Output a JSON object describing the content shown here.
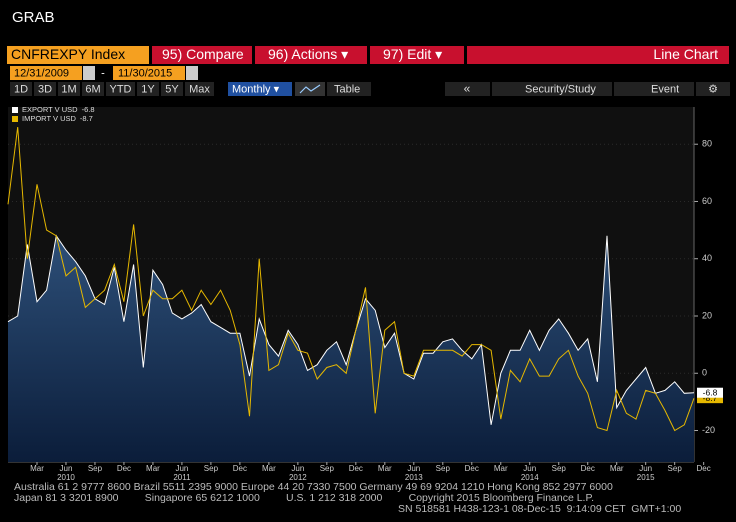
{
  "window": {
    "title": "GRAB"
  },
  "toolbar": {
    "security": "CNFREXPY Index",
    "buttons": [
      "95) Compare",
      "96) Actions ▾",
      "97) Edit ▾"
    ],
    "view": "Line Chart",
    "start_date": "12/31/2009",
    "end_date": "11/30/2015",
    "periods": [
      "1D",
      "3D",
      "1M",
      "6M",
      "YTD",
      "1Y",
      "5Y",
      "Max"
    ],
    "frequency": "Monthly ▾",
    "table": "Table",
    "security_study": "Security/Study",
    "event": "Event"
  },
  "chart_data": {
    "type": "line",
    "x": [
      "2009-12",
      "2010-01",
      "2010-02",
      "2010-03",
      "2010-04",
      "2010-05",
      "2010-06",
      "2010-07",
      "2010-08",
      "2010-09",
      "2010-10",
      "2010-11",
      "2010-12",
      "2011-01",
      "2011-02",
      "2011-03",
      "2011-04",
      "2011-05",
      "2011-06",
      "2011-07",
      "2011-08",
      "2011-09",
      "2011-10",
      "2011-11",
      "2011-12",
      "2012-01",
      "2012-02",
      "2012-03",
      "2012-04",
      "2012-05",
      "2012-06",
      "2012-07",
      "2012-08",
      "2012-09",
      "2012-10",
      "2012-11",
      "2012-12",
      "2013-01",
      "2013-02",
      "2013-03",
      "2013-04",
      "2013-05",
      "2013-06",
      "2013-07",
      "2013-08",
      "2013-09",
      "2013-10",
      "2013-11",
      "2013-12",
      "2014-01",
      "2014-02",
      "2014-03",
      "2014-04",
      "2014-05",
      "2014-06",
      "2014-07",
      "2014-08",
      "2014-09",
      "2014-10",
      "2014-11",
      "2014-12",
      "2015-01",
      "2015-02",
      "2015-03",
      "2015-04",
      "2015-05",
      "2015-06",
      "2015-07",
      "2015-08",
      "2015-09",
      "2015-10",
      "2015-11"
    ],
    "series": [
      {
        "name": "EXPORT V USD",
        "color": "#ffffff",
        "area": true,
        "values": [
          18,
          20,
          45,
          25,
          29,
          48,
          43,
          39,
          34,
          26,
          24,
          37,
          18,
          38,
          2,
          36,
          31,
          21,
          19,
          21,
          24,
          18,
          16,
          14,
          14,
          -1,
          19,
          10,
          6,
          15,
          10,
          1,
          3,
          8,
          11,
          3,
          15,
          26,
          22,
          9,
          14,
          0,
          -2,
          7,
          7,
          11,
          12,
          8,
          5,
          10,
          -18,
          0,
          8,
          8,
          15,
          8,
          15,
          19,
          14,
          8,
          12,
          -3,
          48,
          -12,
          -6,
          -2,
          2,
          -7,
          -6,
          -3,
          -7,
          -6.8
        ]
      },
      {
        "name": "IMPORT V USD",
        "color": "#e6b800",
        "area": false,
        "values": [
          59,
          86,
          40,
          66,
          50,
          48,
          34,
          37,
          23,
          26,
          29,
          38,
          25,
          52,
          20,
          29,
          26,
          26,
          29,
          22,
          29,
          24,
          29,
          22,
          10,
          -15,
          40,
          1,
          3,
          14,
          8,
          7,
          -2,
          2,
          3,
          0,
          15,
          30,
          -14,
          15,
          18,
          0,
          -1,
          8,
          8,
          8,
          8,
          6,
          10,
          10,
          8,
          -16,
          1,
          -3,
          5,
          -1,
          -1,
          5,
          8,
          -1,
          -7,
          -19,
          -20,
          -6,
          -14,
          -16,
          -6,
          -7,
          -13,
          -20,
          -18,
          -8.7
        ]
      }
    ],
    "xticks": [
      {
        "value": "2010-03",
        "label": "Mar"
      },
      {
        "value": "2010-06",
        "label": "Jun"
      },
      {
        "value": "2010-09",
        "label": "Sep"
      },
      {
        "value": "2010-12",
        "label": "Dec"
      },
      {
        "value": "2011-03",
        "label": "Mar"
      },
      {
        "value": "2011-06",
        "label": "Jun"
      },
      {
        "value": "2011-09",
        "label": "Sep"
      },
      {
        "value": "2011-12",
        "label": "Dec"
      },
      {
        "value": "2012-03",
        "label": "Mar"
      },
      {
        "value": "2012-06",
        "label": "Jun"
      },
      {
        "value": "2012-09",
        "label": "Sep"
      },
      {
        "value": "2012-12",
        "label": "Dec"
      },
      {
        "value": "2013-03",
        "label": "Mar"
      },
      {
        "value": "2013-06",
        "label": "Jun"
      },
      {
        "value": "2013-09",
        "label": "Sep"
      },
      {
        "value": "2013-12",
        "label": "Dec"
      },
      {
        "value": "2014-03",
        "label": "Mar"
      },
      {
        "value": "2014-06",
        "label": "Jun"
      },
      {
        "value": "2014-09",
        "label": "Sep"
      },
      {
        "value": "2014-12",
        "label": "Dec"
      },
      {
        "value": "2015-03",
        "label": "Mar"
      },
      {
        "value": "2015-06",
        "label": "Jun"
      },
      {
        "value": "2015-09",
        "label": "Sep"
      },
      {
        "value": "2015-12",
        "label": "Dec"
      }
    ],
    "year_ticks": [
      {
        "value": "2010-06",
        "label": "2010"
      },
      {
        "value": "2011-06",
        "label": "2011"
      },
      {
        "value": "2012-06",
        "label": "2012"
      },
      {
        "value": "2013-06",
        "label": "2013"
      },
      {
        "value": "2014-06",
        "label": "2014"
      },
      {
        "value": "2015-06",
        "label": "2015"
      }
    ],
    "ylim": [
      -31,
      93
    ],
    "yticks": [
      -20,
      0,
      20,
      40,
      60,
      80
    ],
    "legend": "top-left"
  },
  "footer": {
    "lines": [
      "Australia 61 2 9777 8600 Brazil 5511 2395 9000 Europe 44 20 7330 7500 Germany 49 69 9204 1210 Hong Kong 852 2977 6000",
      "Japan 81 3 3201 8900         Singapore 65 6212 1000         U.S. 1 212 318 2000         Copyright 2015 Bloomberg Finance L.P.",
      "SN 518581 H438-123-1 08-Dec-15  9:14:09 CET  GMT+1:00"
    ]
  }
}
